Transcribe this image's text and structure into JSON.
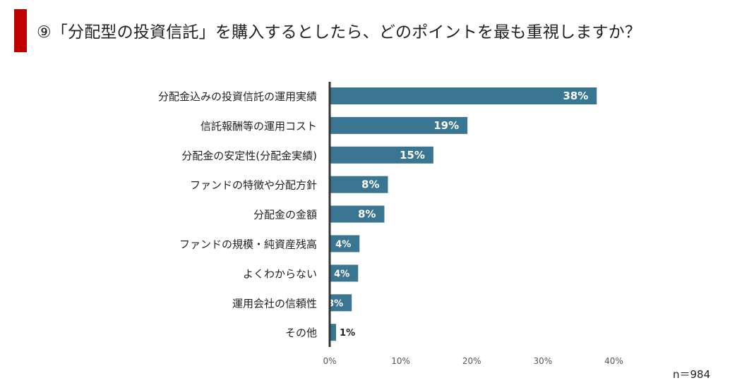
{
  "header": {
    "title": "⑨「分配型の投資信託」を購入するとしたら、どのポイントを最も重視しますか？",
    "accent_color": "#c00000"
  },
  "footer": {
    "sample_size": "n＝984"
  },
  "chart_data": {
    "type": "bar",
    "orientation": "horizontal",
    "bar_color": "#3a7591",
    "categories": [
      "分配金込みの投資信託の運用実績",
      "信託報酬等の運用コスト",
      "分配金の安定性(分配金実績)",
      "ファンドの特徴や分配方針",
      "分配金の金額",
      "ファンドの規模・純資産残高",
      "よくわからない",
      "運用会社の信頼性",
      "その他"
    ],
    "values": [
      37.6,
      19.4,
      14.6,
      8.2,
      7.7,
      4.2,
      4.0,
      3.1,
      0.9
    ],
    "data_labels": [
      "38%",
      "19%",
      "15%",
      "8%",
      "8%",
      "4%",
      "4%",
      "3%",
      "1%"
    ],
    "x_ticks": [
      "0%",
      "10%",
      "20%",
      "30%",
      "40%"
    ],
    "xlim": [
      0,
      40
    ],
    "grid": false
  }
}
